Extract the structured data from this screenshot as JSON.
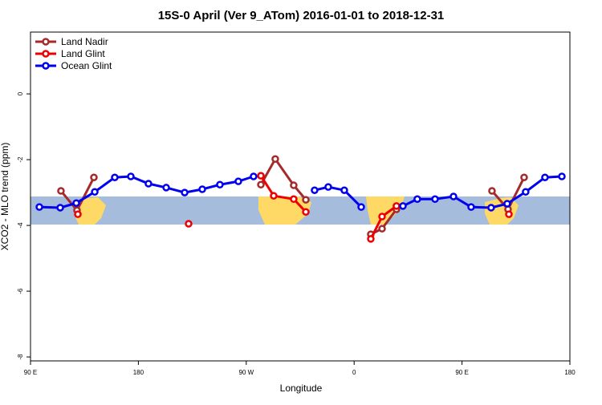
{
  "chart_data": {
    "type": "line",
    "title": "15S-0 April (Ver 9_ATom)   2016-01-01 to 2018-12-31",
    "xlabel": "Longitude",
    "ylabel": "XCO2 - MLO trend (ppm)",
    "xlim": [
      90,
      540
    ],
    "ylim": [
      -8.12,
      1.88
    ],
    "xticks": [
      {
        "value": 90,
        "label": "90 E"
      },
      180,
      {
        "value": 270,
        "label": "90 W"
      },
      {
        "value": 360,
        "label": "0"
      },
      {
        "value": 450,
        "label": "90 E"
      },
      {
        "value": 540,
        "label": "180"
      }
    ],
    "yticks": [
      0,
      -2,
      -4,
      -6,
      -8
    ],
    "legend": "top-left",
    "series": [
      {
        "name": "Land Nadir",
        "color": "#a52a2a",
        "x": [
          115.4,
          128.8,
          142.9,
          null,
          282.2,
          294.2,
          309.6,
          319.7,
          null,
          373.9,
          383.3,
          395.3,
          null,
          475.0,
          488.4,
          501.8
        ],
        "values": [
          -2.95,
          -3.54,
          -2.54,
          null,
          -2.76,
          -1.98,
          -2.78,
          -3.22,
          null,
          -4.27,
          -4.1,
          -3.51,
          null,
          -2.95,
          -3.51,
          -2.54
        ]
      },
      {
        "name": "Land Glint",
        "color": "#ee0000",
        "x": [
          129.5,
          null,
          221.9,
          null,
          282.2,
          292.9,
          309.6,
          319.7,
          null,
          373.9,
          383.3,
          395.3,
          null,
          489.1
        ],
        "values": [
          -3.66,
          null,
          -3.95,
          null,
          -2.49,
          -3.1,
          -3.2,
          -3.59,
          null,
          -4.41,
          -3.73,
          -3.41,
          null,
          -3.66
        ]
      },
      {
        "name": "Ocean Glint",
        "color": "#0000ee",
        "x": [
          97.4,
          114.8,
          128.2,
          143.6,
          160.3,
          173.7,
          188.4,
          203.2,
          218.6,
          233.3,
          248.0,
          263.4,
          276.1,
          null,
          327.0,
          338.4,
          351.8,
          365.9,
          null,
          400.7,
          412.7,
          427.5,
          442.9,
          457.6,
          474.3,
          487.7,
          503.1,
          519.2,
          533.3
        ],
        "values": [
          -3.44,
          -3.46,
          -3.32,
          -2.98,
          -2.54,
          -2.51,
          -2.73,
          -2.85,
          -3.0,
          -2.9,
          -2.76,
          -2.66,
          -2.51,
          null,
          -2.93,
          -2.83,
          -2.93,
          -3.44,
          null,
          -3.41,
          -3.2,
          -3.2,
          -3.12,
          -3.44,
          -3.46,
          -3.34,
          -2.98,
          -2.54,
          -2.51
        ]
      }
    ]
  }
}
